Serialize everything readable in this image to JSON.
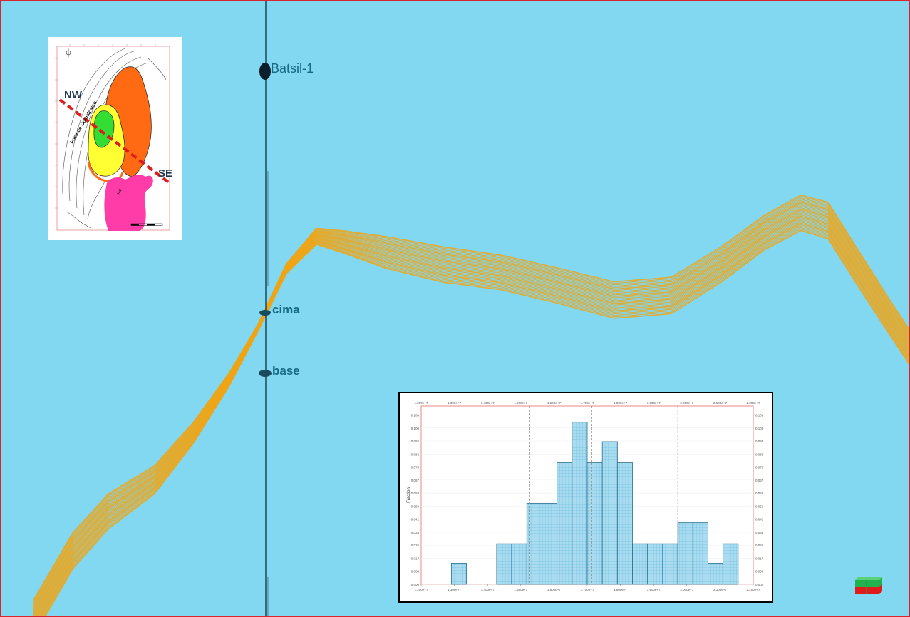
{
  "well": {
    "name": "Batsil-1",
    "markers": [
      "cima",
      "base"
    ]
  },
  "inset_map": {
    "direction_start": "NW",
    "direction_end": "SE",
    "fault_label": "Fosa de Comalcalco",
    "body_label": "Sal",
    "zone_colors": [
      "#ff6a13",
      "#ffff33",
      "#33dd33",
      "#ff3ca8"
    ],
    "section_line_color": "#e01b1b"
  },
  "seismic_section": {
    "background_color": "#82d7f1",
    "horizon_color": "#f0a514",
    "well_color": "#1a4a5e"
  },
  "chart_data": {
    "type": "bar",
    "title": "",
    "xlabel": "",
    "ylabel": "Fraction",
    "bars": [
      0.013,
      0,
      0,
      0.025,
      0.025,
      0.05,
      0.05,
      0.075,
      0.1,
      0.075,
      0.088,
      0.075,
      0.025,
      0.025,
      0.025,
      0.038,
      0.038,
      0.013,
      0.025
    ],
    "first_bar_index": 2,
    "bin_count": 22,
    "ylim": [
      0,
      0.11
    ],
    "yticks": [
      "0.000",
      "0.008",
      "0.017",
      "0.025",
      "0.033",
      "0.042",
      "0.050",
      "0.058",
      "0.067",
      "0.075",
      "0.083",
      "0.092",
      "0.100",
      "0.108"
    ],
    "xticks": [
      "1.200e+7",
      "1.300e+7",
      "1.400e+7",
      "1.500e+7",
      "1.600e+7",
      "1.700e+7",
      "1.800e+7",
      "1.900e+7",
      "2.000e+7",
      "2.100e+7",
      "2.200e+7"
    ],
    "bar_color": "#a9dcf0",
    "reference_lines": [
      7.2,
      11.3,
      17.0
    ],
    "grid": true
  }
}
